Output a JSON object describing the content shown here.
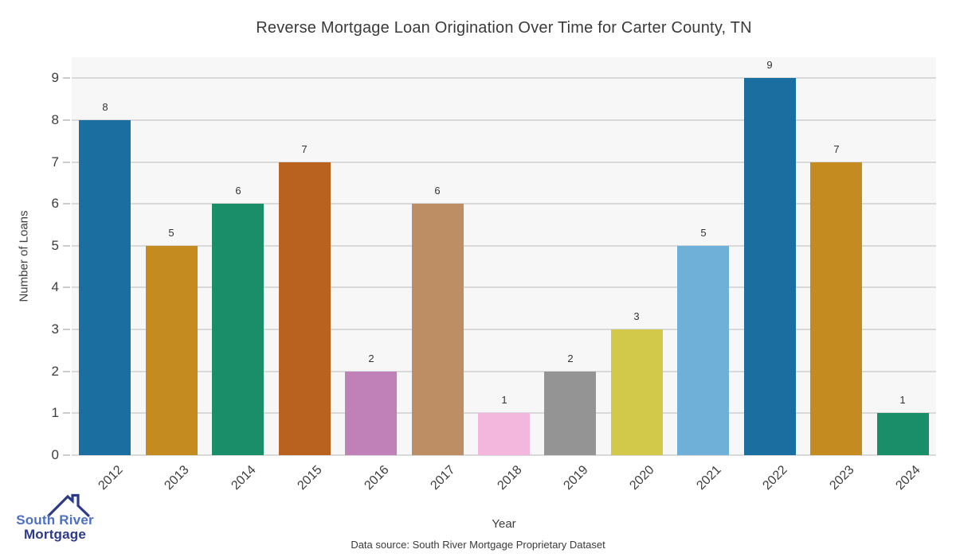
{
  "figure": {
    "footer": "Data source: South River Mortgage Proprietary Dataset"
  },
  "logo": {
    "line1": "South River",
    "line2": "Mortgage",
    "color_primary": "#4d70c4",
    "color_secondary": "#2d3a8c"
  },
  "chart_data": {
    "type": "bar",
    "title": "Reverse Mortgage Loan Origination Over Time for Carter County, TN",
    "xlabel": "Year",
    "ylabel": "Number of Loans",
    "categories": [
      "2012",
      "2013",
      "2014",
      "2015",
      "2016",
      "2017",
      "2018",
      "2019",
      "2020",
      "2021",
      "2022",
      "2023",
      "2024"
    ],
    "values": [
      8,
      5,
      6,
      7,
      2,
      6,
      1,
      2,
      3,
      5,
      9,
      7,
      1
    ],
    "bar_colors": [
      "#1b6fa0",
      "#c48b21",
      "#1a8e69",
      "#b9611f",
      "#bf81b7",
      "#bd8d63",
      "#f3b7dd",
      "#949494",
      "#d2c94b",
      "#6fb0d8",
      "#1b6fa0",
      "#c48b21",
      "#1a8e69"
    ],
    "value_labels": true,
    "ylim": [
      0,
      9.5
    ],
    "yticks": [
      0,
      1,
      2,
      3,
      4,
      5,
      6,
      7,
      8,
      9
    ],
    "grid": "horizontal",
    "legend": "none",
    "panel_bg": "#f7f7f7",
    "grid_color": "#d9d9d9",
    "text_color": "#3d3d3d"
  }
}
